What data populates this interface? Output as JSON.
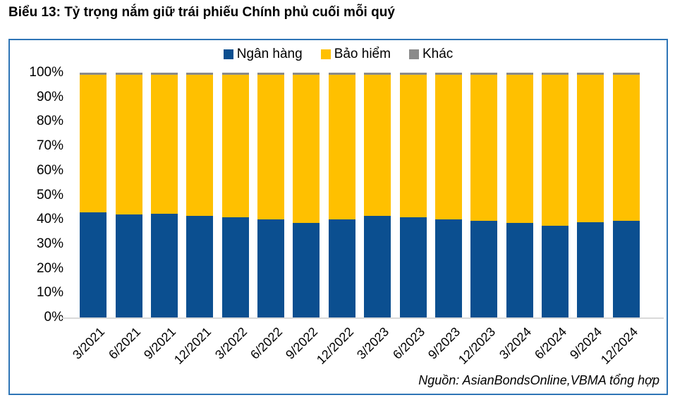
{
  "title": "Biểu 13: Tỷ trọng nắm giữ trái phiếu Chính phủ cuối mỗi quý",
  "source": "Nguồn: AsianBondsOnline,VBMA tổng hợp",
  "colors": {
    "bank_blue": "#0B4F90",
    "insurance_yellow": "#FFC000",
    "other_gray": "#8A8A8A",
    "frame_border": "#2E75B6",
    "axis_line": "#D9D9D9"
  },
  "legend": [
    {
      "label": "Ngân hàng",
      "color": "#0B4F90"
    },
    {
      "label": "Bảo hiểm",
      "color": "#FFC000"
    },
    {
      "label": "Khác",
      "color": "#8A8A8A"
    }
  ],
  "chart_data": {
    "type": "bar",
    "stacked": true,
    "title": "Biểu 13: Tỷ trọng nắm giữ trái phiếu Chính phủ cuối mỗi quý",
    "categories": [
      "3/2021",
      "6/2021",
      "9/2021",
      "12/2021",
      "3/2022",
      "6/2022",
      "9/2022",
      "12/2022",
      "3/2023",
      "6/2023",
      "9/2023",
      "12/2023",
      "3/2024",
      "6/2024",
      "9/2024",
      "12/2024"
    ],
    "series": [
      {
        "name": "Ngân hàng",
        "color": "#0B4F90",
        "values": [
          43,
          42,
          42.5,
          41.5,
          41,
          40,
          38.5,
          40,
          41.5,
          41,
          40,
          39.5,
          38.5,
          37.5,
          39,
          39.5
        ]
      },
      {
        "name": "Bảo hiểm",
        "color": "#FFC000",
        "values": [
          56,
          57,
          56.5,
          57.5,
          58,
          59,
          60.5,
          59,
          57.5,
          58,
          59,
          59.5,
          60.5,
          61.5,
          60,
          59.5
        ]
      },
      {
        "name": "Khác",
        "color": "#8A8A8A",
        "values": [
          1,
          1,
          1,
          1,
          1,
          1,
          1,
          1,
          1,
          1,
          1,
          1,
          1,
          1,
          1,
          1
        ]
      }
    ],
    "xlabel": "",
    "ylabel": "",
    "ylim": [
      0,
      100
    ],
    "yticks_top_to_bottom": [
      "100%",
      "90%",
      "80%",
      "70%",
      "60%",
      "50%",
      "40%",
      "30%",
      "20%",
      "10%",
      "0%"
    ],
    "grid": false,
    "legend_position": "top-center",
    "unit": "percent"
  }
}
